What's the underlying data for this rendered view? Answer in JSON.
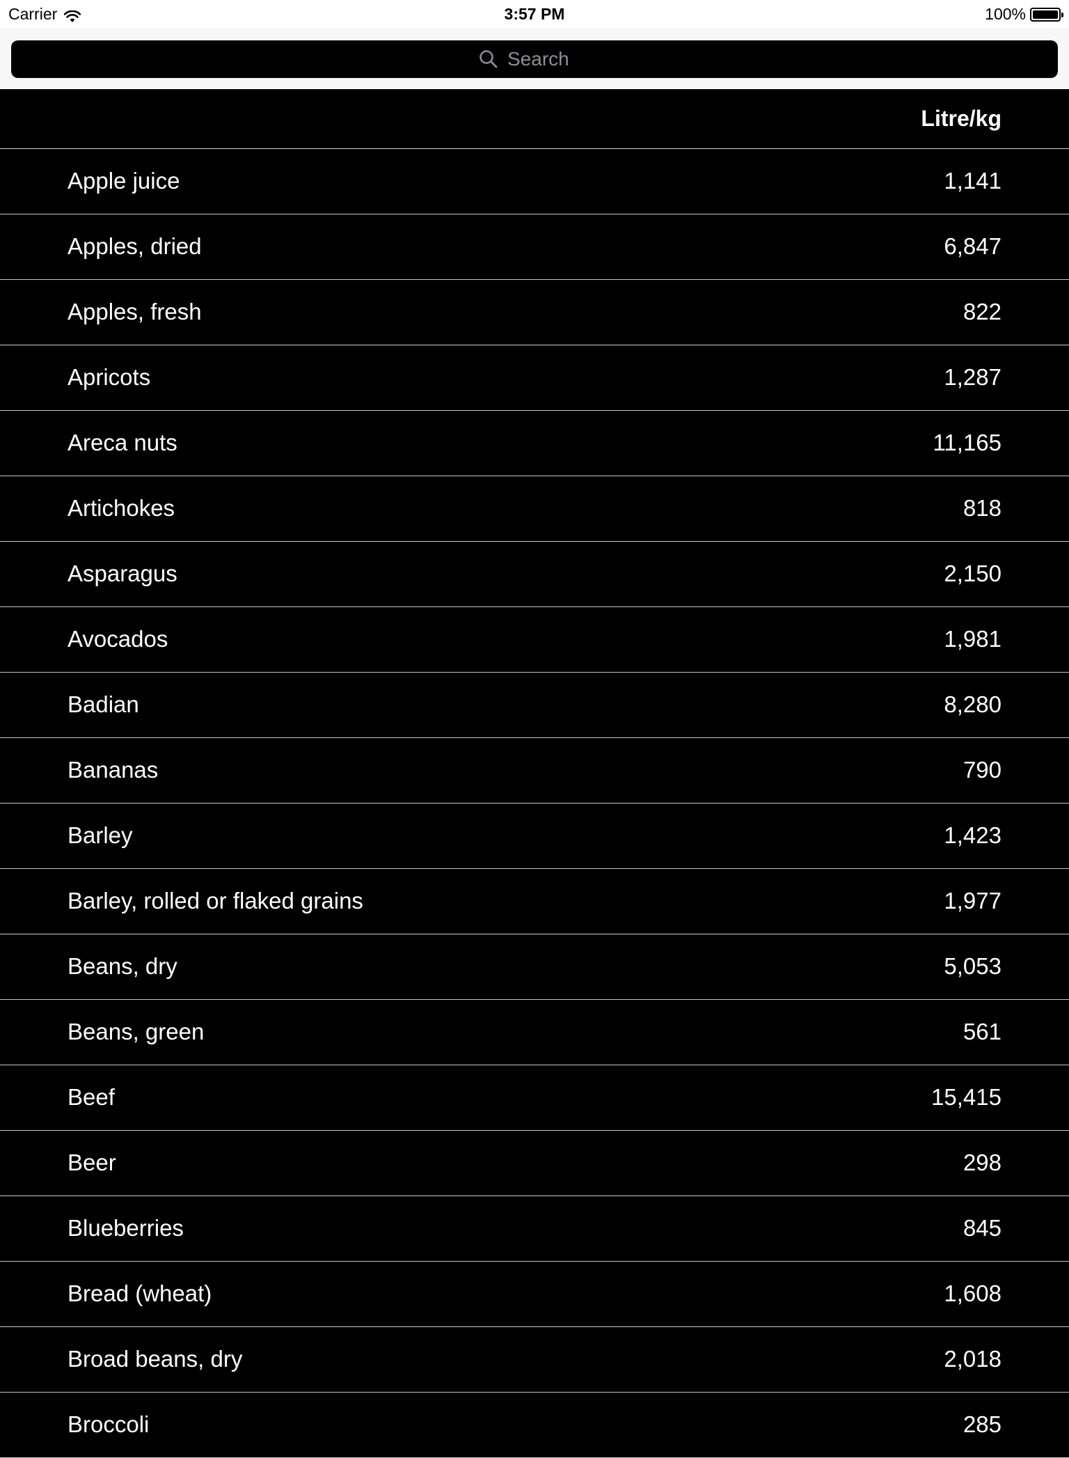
{
  "status_bar": {
    "carrier": "Carrier",
    "time": "3:57 PM",
    "battery": "100%",
    "battery_level": 1.0
  },
  "search": {
    "placeholder": "Search",
    "value": ""
  },
  "table": {
    "header": "Litre/kg",
    "rows": [
      {
        "name": "Apple juice",
        "value": "1,141"
      },
      {
        "name": "Apples, dried",
        "value": "6,847"
      },
      {
        "name": "Apples, fresh",
        "value": "822"
      },
      {
        "name": "Apricots",
        "value": "1,287"
      },
      {
        "name": "Areca nuts",
        "value": "11,165"
      },
      {
        "name": "Artichokes",
        "value": "818"
      },
      {
        "name": "Asparagus",
        "value": "2,150"
      },
      {
        "name": "Avocados",
        "value": "1,981"
      },
      {
        "name": "Badian",
        "value": "8,280"
      },
      {
        "name": "Bananas",
        "value": "790"
      },
      {
        "name": "Barley",
        "value": "1,423"
      },
      {
        "name": "Barley, rolled or flaked grains",
        "value": "1,977"
      },
      {
        "name": "Beans, dry",
        "value": "5,053"
      },
      {
        "name": "Beans, green",
        "value": "561"
      },
      {
        "name": "Beef",
        "value": "15,415"
      },
      {
        "name": "Beer",
        "value": "298"
      },
      {
        "name": "Blueberries",
        "value": "845"
      },
      {
        "name": "Bread (wheat)",
        "value": "1,608"
      },
      {
        "name": "Broad beans, dry",
        "value": "2,018"
      },
      {
        "name": "Broccoli",
        "value": "285"
      }
    ]
  },
  "colors": {
    "background": "#000000",
    "text": "#ffffff",
    "separator": "#c8c8c8",
    "search_bar_bg": "#f7f7f7",
    "placeholder": "#8e8e93"
  },
  "icons": {
    "wifi": "wifi-icon",
    "battery": "battery-icon",
    "search": "search-icon"
  }
}
